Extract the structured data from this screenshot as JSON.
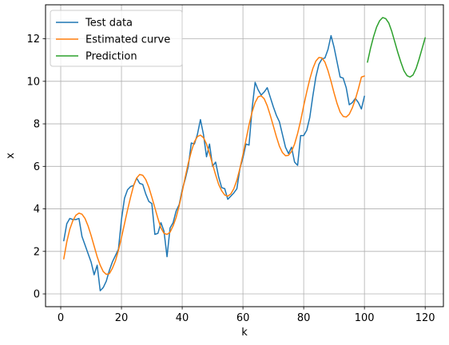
{
  "chart_data": {
    "type": "line",
    "title": "",
    "xlabel": "k",
    "ylabel": "x",
    "xlim": [
      -5,
      126
    ],
    "ylim": [
      -0.6,
      13.6
    ],
    "xticks": [
      0,
      20,
      40,
      60,
      80,
      100,
      120
    ],
    "yticks": [
      0,
      2,
      4,
      6,
      8,
      10,
      12
    ],
    "grid": true,
    "legend": "top-left",
    "series": [
      {
        "name": "Test data",
        "color": "#1f77b4",
        "points": [
          [
            1,
            2.5
          ],
          [
            2,
            3.3
          ],
          [
            3,
            3.55
          ],
          [
            4,
            3.5
          ],
          [
            5,
            3.5
          ],
          [
            6,
            3.55
          ],
          [
            7,
            2.7
          ],
          [
            8,
            2.3
          ],
          [
            9,
            1.9
          ],
          [
            10,
            1.5
          ],
          [
            11,
            0.9
          ],
          [
            12,
            1.35
          ],
          [
            13,
            0.15
          ],
          [
            14,
            0.3
          ],
          [
            15,
            0.6
          ],
          [
            16,
            1.1
          ],
          [
            17,
            1.5
          ],
          [
            18,
            1.8
          ],
          [
            19,
            2.1
          ],
          [
            20,
            3.5
          ],
          [
            21,
            4.5
          ],
          [
            22,
            4.9
          ],
          [
            23,
            5.05
          ],
          [
            24,
            5.1
          ],
          [
            25,
            5.45
          ],
          [
            26,
            5.2
          ],
          [
            27,
            5.15
          ],
          [
            28,
            4.7
          ],
          [
            29,
            4.35
          ],
          [
            30,
            4.25
          ],
          [
            31,
            2.8
          ],
          [
            32,
            2.85
          ],
          [
            33,
            3.35
          ],
          [
            34,
            2.95
          ],
          [
            35,
            1.75
          ],
          [
            36,
            3.1
          ],
          [
            37,
            3.35
          ],
          [
            38,
            3.9
          ],
          [
            39,
            4.2
          ],
          [
            40,
            4.9
          ],
          [
            41,
            5.4
          ],
          [
            42,
            6.0
          ],
          [
            43,
            7.1
          ],
          [
            44,
            7.05
          ],
          [
            45,
            7.5
          ],
          [
            46,
            8.2
          ],
          [
            47,
            7.5
          ],
          [
            48,
            6.45
          ],
          [
            49,
            7.05
          ],
          [
            50,
            6.0
          ],
          [
            51,
            6.2
          ],
          [
            52,
            5.5
          ],
          [
            53,
            5.0
          ],
          [
            54,
            4.95
          ],
          [
            55,
            4.45
          ],
          [
            56,
            4.6
          ],
          [
            57,
            4.75
          ],
          [
            58,
            4.95
          ],
          [
            59,
            5.9
          ],
          [
            60,
            6.4
          ],
          [
            61,
            7.05
          ],
          [
            62,
            7.0
          ],
          [
            63,
            8.7
          ],
          [
            64,
            9.95
          ],
          [
            65,
            9.6
          ],
          [
            66,
            9.35
          ],
          [
            67,
            9.5
          ],
          [
            68,
            9.7
          ],
          [
            69,
            9.25
          ],
          [
            70,
            8.8
          ],
          [
            71,
            8.4
          ],
          [
            72,
            8.1
          ],
          [
            73,
            7.5
          ],
          [
            74,
            6.9
          ],
          [
            75,
            6.6
          ],
          [
            76,
            6.9
          ],
          [
            77,
            6.2
          ],
          [
            78,
            6.05
          ],
          [
            79,
            7.45
          ],
          [
            80,
            7.45
          ],
          [
            81,
            7.7
          ],
          [
            82,
            8.3
          ],
          [
            83,
            9.3
          ],
          [
            84,
            10.2
          ],
          [
            85,
            10.8
          ],
          [
            86,
            11.05
          ],
          [
            87,
            11.1
          ],
          [
            88,
            11.5
          ],
          [
            89,
            12.15
          ],
          [
            90,
            11.6
          ],
          [
            91,
            10.9
          ],
          [
            92,
            10.2
          ],
          [
            93,
            10.15
          ],
          [
            94,
            9.7
          ],
          [
            95,
            8.9
          ],
          [
            96,
            9.0
          ],
          [
            97,
            9.2
          ],
          [
            98,
            9.0
          ],
          [
            99,
            8.7
          ],
          [
            100,
            9.3
          ]
        ]
      },
      {
        "name": "Estimated curve",
        "color": "#ff7f0e",
        "points": [
          [
            1,
            1.65
          ],
          [
            2,
            2.45
          ],
          [
            3,
            3.05
          ],
          [
            4,
            3.45
          ],
          [
            5,
            3.7
          ],
          [
            6,
            3.8
          ],
          [
            7,
            3.75
          ],
          [
            8,
            3.55
          ],
          [
            9,
            3.2
          ],
          [
            10,
            2.75
          ],
          [
            11,
            2.25
          ],
          [
            12,
            1.75
          ],
          [
            13,
            1.35
          ],
          [
            14,
            1.05
          ],
          [
            15,
            0.92
          ],
          [
            16,
            0.95
          ],
          [
            17,
            1.2
          ],
          [
            18,
            1.55
          ],
          [
            19,
            2.05
          ],
          [
            20,
            2.65
          ],
          [
            21,
            3.3
          ],
          [
            22,
            3.95
          ],
          [
            23,
            4.55
          ],
          [
            24,
            5.1
          ],
          [
            25,
            5.45
          ],
          [
            26,
            5.62
          ],
          [
            27,
            5.58
          ],
          [
            28,
            5.38
          ],
          [
            29,
            5.02
          ],
          [
            30,
            4.55
          ],
          [
            31,
            4.05
          ],
          [
            32,
            3.55
          ],
          [
            33,
            3.1
          ],
          [
            34,
            2.85
          ],
          [
            35,
            2.8
          ],
          [
            36,
            2.9
          ],
          [
            37,
            3.2
          ],
          [
            38,
            3.6
          ],
          [
            39,
            4.15
          ],
          [
            40,
            4.8
          ],
          [
            41,
            5.5
          ],
          [
            42,
            6.15
          ],
          [
            43,
            6.7
          ],
          [
            44,
            7.15
          ],
          [
            45,
            7.4
          ],
          [
            46,
            7.47
          ],
          [
            47,
            7.35
          ],
          [
            48,
            7.05
          ],
          [
            49,
            6.6
          ],
          [
            50,
            6.1
          ],
          [
            51,
            5.6
          ],
          [
            52,
            5.15
          ],
          [
            53,
            4.85
          ],
          [
            54,
            4.65
          ],
          [
            55,
            4.6
          ],
          [
            56,
            4.7
          ],
          [
            57,
            4.95
          ],
          [
            58,
            5.35
          ],
          [
            59,
            5.9
          ],
          [
            60,
            6.55
          ],
          [
            61,
            7.25
          ],
          [
            62,
            7.95
          ],
          [
            63,
            8.55
          ],
          [
            64,
            9.0
          ],
          [
            65,
            9.27
          ],
          [
            66,
            9.32
          ],
          [
            67,
            9.18
          ],
          [
            68,
            8.85
          ],
          [
            69,
            8.4
          ],
          [
            70,
            7.9
          ],
          [
            71,
            7.4
          ],
          [
            72,
            6.95
          ],
          [
            73,
            6.65
          ],
          [
            74,
            6.5
          ],
          [
            75,
            6.52
          ],
          [
            76,
            6.7
          ],
          [
            77,
            7.05
          ],
          [
            78,
            7.55
          ],
          [
            79,
            8.15
          ],
          [
            80,
            8.85
          ],
          [
            81,
            9.5
          ],
          [
            82,
            10.1
          ],
          [
            83,
            10.6
          ],
          [
            84,
            10.95
          ],
          [
            85,
            11.12
          ],
          [
            86,
            11.1
          ],
          [
            87,
            10.9
          ],
          [
            88,
            10.5
          ],
          [
            89,
            10.0
          ],
          [
            90,
            9.45
          ],
          [
            91,
            8.95
          ],
          [
            92,
            8.55
          ],
          [
            93,
            8.35
          ],
          [
            94,
            8.32
          ],
          [
            95,
            8.45
          ],
          [
            96,
            8.75
          ],
          [
            97,
            9.15
          ],
          [
            98,
            9.65
          ],
          [
            99,
            10.2
          ],
          [
            100,
            10.25
          ]
        ]
      },
      {
        "name": "Prediction",
        "color": "#2ca02c",
        "points": [
          [
            101,
            10.9
          ],
          [
            102,
            11.55
          ],
          [
            103,
            12.1
          ],
          [
            104,
            12.55
          ],
          [
            105,
            12.85
          ],
          [
            106,
            13.0
          ],
          [
            107,
            12.95
          ],
          [
            108,
            12.75
          ],
          [
            109,
            12.35
          ],
          [
            110,
            11.85
          ],
          [
            111,
            11.35
          ],
          [
            112,
            10.9
          ],
          [
            113,
            10.5
          ],
          [
            114,
            10.27
          ],
          [
            115,
            10.2
          ],
          [
            116,
            10.3
          ],
          [
            117,
            10.6
          ],
          [
            118,
            11.05
          ],
          [
            119,
            11.55
          ],
          [
            120,
            12.05
          ]
        ]
      }
    ]
  }
}
